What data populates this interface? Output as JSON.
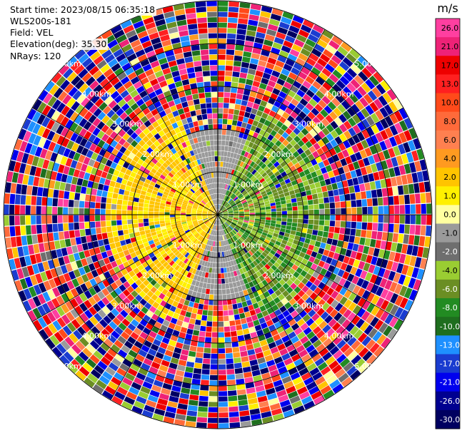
{
  "header": {
    "start_time": "Start time: 2023/08/15 06:35:18",
    "instrument": "WLS200s-181",
    "field": "Field: VEL",
    "elevation": "Elevation(deg): 35.30",
    "nrays": "NRays: 120"
  },
  "chart_data": {
    "type": "heatmap",
    "projection": "polar-ppi",
    "field": "VEL",
    "units": "m/s",
    "n_rays": 120,
    "elevation_deg": 35.3,
    "range_rings_km": [
      1,
      2,
      3,
      4,
      5
    ],
    "range_labels": [
      "1.00km",
      "2.00km",
      "3.00km",
      "4.00km",
      "5.00km"
    ],
    "colorbar": {
      "title": "m/s",
      "ticks": [
        "26.0",
        "21.0",
        "17.0",
        "13.0",
        "10.0",
        "8.0",
        "6.0",
        "4.0",
        "2.0",
        "1.0",
        "0.0",
        "-1.0",
        "-2.0",
        "-4.0",
        "-6.0",
        "-8.0",
        "-10.0",
        "-13.0",
        "-17.0",
        "-21.0",
        "-26.0",
        "-30.0"
      ],
      "colors": [
        "#ff3fa0",
        "#ee2277",
        "#ee0000",
        "#ff2020",
        "#ff4a1a",
        "#ff6a3a",
        "#ff8050",
        "#ff9a20",
        "#ffc400",
        "#fff000",
        "#ffffa0",
        "#9a9a9a",
        "#6e6e6e",
        "#9acd32",
        "#6b8e23",
        "#228b22",
        "#1e6e1e",
        "#1e90ff",
        "#1a3cd0",
        "#0000ee",
        "#000090",
        "#000060"
      ]
    },
    "structure_description_zones": [
      {
        "azimuth_start": 200,
        "azimuth_end": 340,
        "range_start_km": 0,
        "range_end_km": 2.6,
        "value_range": [
          1,
          4
        ]
      },
      {
        "azimuth_start": 20,
        "azimuth_end": 160,
        "range_start_km": 0,
        "range_end_km": 2.6,
        "value_range": [
          -8,
          -2
        ]
      },
      {
        "azimuth_start": 340,
        "azimuth_end": 20,
        "range_start_km": 0,
        "range_end_km": 2.0,
        "value_range": [
          -1,
          0
        ]
      },
      {
        "azimuth_start": 160,
        "azimuth_end": 200,
        "range_start_km": 0,
        "range_end_km": 2.0,
        "value_range": [
          -1,
          0
        ]
      }
    ]
  }
}
